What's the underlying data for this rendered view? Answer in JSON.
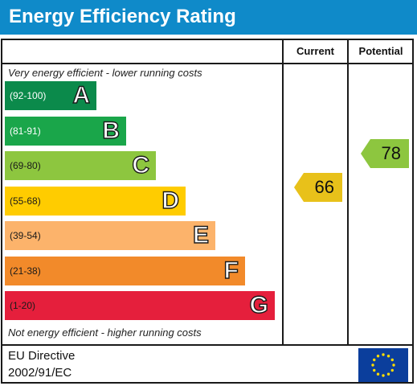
{
  "title": "Energy Efficiency Rating",
  "columns": {
    "current": "Current",
    "potential": "Potential"
  },
  "top_note": "Very energy efficient - lower running costs",
  "bottom_note": "Not energy efficient - higher running costs",
  "bands": [
    {
      "range": "(92-100)",
      "letter": "A",
      "color": "#0b8a4b",
      "range_color": "#ffffff"
    },
    {
      "range": "(81-91)",
      "letter": "B",
      "color": "#1aa64a",
      "range_color": "#ffffff"
    },
    {
      "range": "(69-80)",
      "letter": "C",
      "color": "#8dc63f",
      "range_color": "#1a1a1a"
    },
    {
      "range": "(55-68)",
      "letter": "D",
      "color": "#ffcc00",
      "range_color": "#1a1a1a"
    },
    {
      "range": "(39-54)",
      "letter": "E",
      "color": "#fcb36b",
      "range_color": "#1a1a1a"
    },
    {
      "range": "(21-38)",
      "letter": "F",
      "color": "#f28a2a",
      "range_color": "#1a1a1a"
    },
    {
      "range": "(1-20)",
      "letter": "G",
      "color": "#e51f3c",
      "range_color": "#1a1a1a"
    }
  ],
  "current": {
    "value": "66",
    "band": "D",
    "color": "#e8c11a"
  },
  "potential": {
    "value": "78",
    "band": "C",
    "color": "#8dc63f"
  },
  "footer": {
    "line1": "EU Directive",
    "line2": "2002/91/EC"
  },
  "colors": {
    "header": "#0f8ac9",
    "flag": "#0b3e9c",
    "flag_stars": "#ffdd00"
  }
}
